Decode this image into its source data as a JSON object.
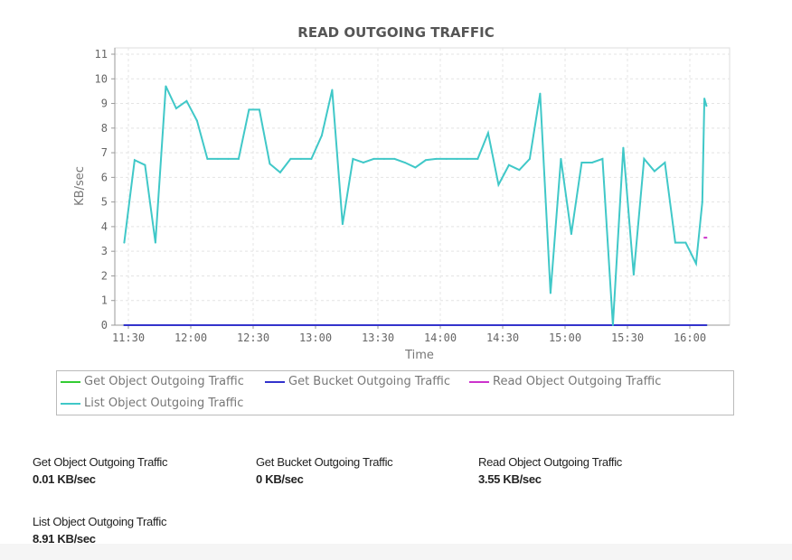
{
  "chart_data": {
    "type": "line",
    "title": "READ OUTGOING TRAFFIC",
    "xlabel": "Time",
    "ylabel": "KB/sec",
    "ylim": [
      0,
      11
    ],
    "yticks": [
      0,
      1,
      2,
      3,
      4,
      5,
      6,
      7,
      8,
      9,
      10,
      11
    ],
    "xticks": [
      "11:30",
      "12:00",
      "12:30",
      "13:00",
      "13:30",
      "14:00",
      "14:30",
      "15:00",
      "15:30",
      "16:00"
    ],
    "grid": true,
    "legend_placement": "bottom",
    "series": [
      {
        "name": "Get Object Outgoing Traffic",
        "color": "#33cc33",
        "x": [
          "11:28",
          "16:08"
        ],
        "y": [
          0,
          0
        ]
      },
      {
        "name": "Get Bucket Outgoing Traffic",
        "color": "#3333cc",
        "x": [
          "11:28",
          "16:08"
        ],
        "y": [
          0,
          0
        ]
      },
      {
        "name": "Read Object Outgoing Traffic",
        "color": "#cc33cc",
        "x": [
          "16:07",
          "16:08"
        ],
        "y": [
          3.55,
          3.55
        ]
      },
      {
        "name": "List Object Outgoing Traffic",
        "color": "#40c8c8",
        "x": [
          "11:28",
          "11:33",
          "11:38",
          "11:43",
          "11:48",
          "11:53",
          "11:58",
          "12:03",
          "12:08",
          "12:13",
          "12:18",
          "12:23",
          "12:28",
          "12:33",
          "12:38",
          "12:43",
          "12:48",
          "12:53",
          "12:58",
          "13:03",
          "13:08",
          "13:13",
          "13:18",
          "13:23",
          "13:28",
          "13:33",
          "13:38",
          "13:43",
          "13:48",
          "13:53",
          "13:58",
          "14:03",
          "14:08",
          "14:13",
          "14:18",
          "14:23",
          "14:28",
          "14:33",
          "14:38",
          "14:43",
          "14:48",
          "14:53",
          "14:58",
          "15:03",
          "15:08",
          "15:13",
          "15:18",
          "15:23",
          "15:28",
          "15:33",
          "15:38",
          "15:43",
          "15:48",
          "15:53",
          "15:58",
          "16:03",
          "16:06",
          "16:07",
          "16:08"
        ],
        "y": [
          3.35,
          6.7,
          6.5,
          3.35,
          9.7,
          8.8,
          9.1,
          8.3,
          6.75,
          6.75,
          6.75,
          6.75,
          8.75,
          8.75,
          6.55,
          6.2,
          6.75,
          6.75,
          6.75,
          7.7,
          9.55,
          4.1,
          6.75,
          6.6,
          6.75,
          6.75,
          6.75,
          6.6,
          6.4,
          6.7,
          6.75,
          6.75,
          6.75,
          6.75,
          6.75,
          7.8,
          5.7,
          6.5,
          6.3,
          6.75,
          9.4,
          1.3,
          6.75,
          3.7,
          6.6,
          6.6,
          6.75,
          0,
          7.2,
          2.05,
          6.75,
          6.25,
          6.6,
          3.35,
          3.35,
          2.5,
          5.0,
          9.2,
          8.9
        ]
      }
    ]
  },
  "stats": [
    {
      "label": "Get Object Outgoing Traffic",
      "value": "0.01 KB/sec"
    },
    {
      "label": "Get Bucket Outgoing Traffic",
      "value": "0 KB/sec"
    },
    {
      "label": "Read Object Outgoing Traffic",
      "value": "3.55 KB/sec"
    },
    {
      "label": "List Object Outgoing Traffic",
      "value": "8.91 KB/sec"
    }
  ]
}
